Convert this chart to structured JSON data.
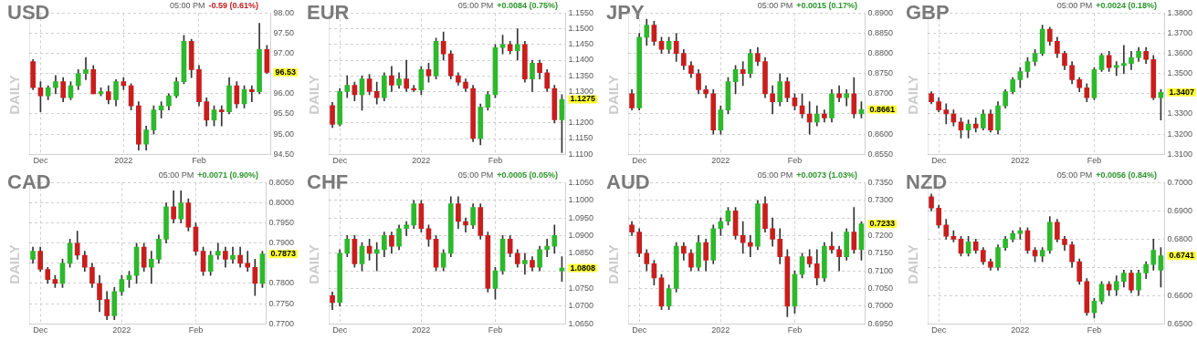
{
  "chart_data": [
    {
      "type": "candlestick",
      "title": "USD",
      "subtitle": "05:00 PM",
      "ylabel": "DAILY",
      "grid": true,
      "annotations": [
        "-0.59 (0.61%)",
        "96.53"
      ],
      "categories": [
        null,
        "Dec",
        null,
        null,
        null,
        null,
        null,
        null,
        null,
        null,
        null,
        null,
        "2022",
        null,
        null,
        null,
        null,
        null,
        null,
        null,
        null,
        null,
        "Feb",
        null,
        null,
        null,
        null,
        null,
        null,
        null,
        null,
        null
      ],
      "ylim": [
        94.5,
        98
      ],
      "yticks": [
        {
          "value": 94.5,
          "label": "94.50"
        },
        {
          "value": 95,
          "label": "95.00"
        },
        {
          "value": 95.5,
          "label": "95.50"
        },
        {
          "value": 96,
          "label": "96.00"
        },
        {
          "value": 96.5,
          "label": null
        },
        {
          "value": 97,
          "label": "97.00"
        },
        {
          "value": 97.5,
          "label": "97.50"
        },
        {
          "value": 98,
          "label": "98.00"
        }
      ],
      "ohlc": [
        [
          96.8,
          96.85,
          96.1,
          96.15
        ],
        [
          96.15,
          96.3,
          95.55,
          95.95
        ],
        [
          95.95,
          96.2,
          95.85,
          96.15
        ],
        [
          96.15,
          96.45,
          96.0,
          96.3
        ],
        [
          96.3,
          96.4,
          95.8,
          95.9
        ],
        [
          95.9,
          96.3,
          95.85,
          96.2
        ],
        [
          96.2,
          96.6,
          96.1,
          96.5
        ],
        [
          96.5,
          96.9,
          96.35,
          96.6
        ],
        [
          96.6,
          96.7,
          96.0,
          96.0
        ],
        [
          96.0,
          96.15,
          95.95,
          96.05
        ],
        [
          96.05,
          96.2,
          95.75,
          95.85
        ],
        [
          95.85,
          96.35,
          95.7,
          96.3
        ],
        [
          96.3,
          96.4,
          96.1,
          96.2
        ],
        [
          96.2,
          96.25,
          95.6,
          95.7
        ],
        [
          95.7,
          95.8,
          94.6,
          94.75
        ],
        [
          94.75,
          95.2,
          94.6,
          95.1
        ],
        [
          95.1,
          95.7,
          95.0,
          95.6
        ],
        [
          95.6,
          95.8,
          95.4,
          95.7
        ],
        [
          95.7,
          96.0,
          95.6,
          95.95
        ],
        [
          95.95,
          96.4,
          95.9,
          96.3
        ],
        [
          96.3,
          97.45,
          96.25,
          97.3
        ],
        [
          97.3,
          97.35,
          96.4,
          96.6
        ],
        [
          96.6,
          96.7,
          95.7,
          95.8
        ],
        [
          95.8,
          95.9,
          95.2,
          95.35
        ],
        [
          95.35,
          95.7,
          95.2,
          95.6
        ],
        [
          95.6,
          95.7,
          95.2,
          95.55
        ],
        [
          95.55,
          96.4,
          95.5,
          96.2
        ],
        [
          96.2,
          96.3,
          95.65,
          95.75
        ],
        [
          95.75,
          96.2,
          95.65,
          96.1
        ],
        [
          96.1,
          96.2,
          95.8,
          96.05
        ],
        [
          96.05,
          97.75,
          96.0,
          97.1
        ],
        [
          97.1,
          97.2,
          96.5,
          96.53
        ]
      ]
    },
    {
      "type": "candlestick",
      "title": "EUR",
      "subtitle": "05:00 PM",
      "ylabel": "DAILY",
      "grid": true,
      "annotations": [
        "+0.0084 (0.75%)",
        "1.1275"
      ],
      "categories": [
        null,
        "Dec",
        null,
        null,
        null,
        null,
        null,
        null,
        null,
        null,
        null,
        null,
        "2022",
        null,
        null,
        null,
        null,
        null,
        null,
        null,
        null,
        null,
        "Feb",
        null,
        null,
        null,
        null,
        null,
        null,
        null,
        null,
        null
      ],
      "ylim": [
        1.11,
        1.155
      ],
      "yticks": [
        {
          "value": 1.11,
          "label": "1.1100"
        },
        {
          "value": 1.115,
          "label": "1.1150"
        },
        {
          "value": 1.12,
          "label": "1.1200"
        },
        {
          "value": 1.125,
          "label": null
        },
        {
          "value": 1.13,
          "label": "1.1300"
        },
        {
          "value": 1.135,
          "label": "1.1350"
        },
        {
          "value": 1.14,
          "label": "1.1400"
        },
        {
          "value": 1.145,
          "label": "1.1450"
        },
        {
          "value": 1.15,
          "label": "1.1500"
        },
        {
          "value": 1.155,
          "label": "1.1550"
        }
      ],
      "ohlc": [
        [
          1.1255,
          1.1265,
          1.1185,
          1.1195
        ],
        [
          1.1195,
          1.131,
          1.119,
          1.13
        ],
        [
          1.13,
          1.135,
          1.128,
          1.132
        ],
        [
          1.132,
          1.133,
          1.127,
          1.129
        ],
        [
          1.129,
          1.135,
          1.124,
          1.134
        ],
        [
          1.134,
          1.1355,
          1.129,
          1.13
        ],
        [
          1.13,
          1.133,
          1.126,
          1.128
        ],
        [
          1.128,
          1.136,
          1.127,
          1.135
        ],
        [
          1.135,
          1.138,
          1.13,
          1.132
        ],
        [
          1.132,
          1.136,
          1.131,
          1.134
        ],
        [
          1.134,
          1.14,
          1.13,
          1.131
        ],
        [
          1.131,
          1.132,
          1.13,
          1.1305
        ],
        [
          1.1305,
          1.138,
          1.129,
          1.137
        ],
        [
          1.137,
          1.139,
          1.133,
          1.135
        ],
        [
          1.135,
          1.147,
          1.134,
          1.146
        ],
        [
          1.146,
          1.149,
          1.14,
          1.142
        ],
        [
          1.142,
          1.143,
          1.134,
          1.135
        ],
        [
          1.135,
          1.136,
          1.132,
          1.133
        ],
        [
          1.133,
          1.134,
          1.13,
          1.131
        ],
        [
          1.131,
          1.132,
          1.114,
          1.115
        ],
        [
          1.115,
          1.126,
          1.113,
          1.125
        ],
        [
          1.125,
          1.13,
          1.124,
          1.129
        ],
        [
          1.129,
          1.145,
          1.128,
          1.144
        ],
        [
          1.144,
          1.148,
          1.142,
          1.145
        ],
        [
          1.145,
          1.146,
          1.142,
          1.143
        ],
        [
          1.143,
          1.15,
          1.14,
          1.145
        ],
        [
          1.145,
          1.146,
          1.133,
          1.134
        ],
        [
          1.134,
          1.14,
          1.13,
          1.139
        ],
        [
          1.139,
          1.14,
          1.134,
          1.136
        ],
        [
          1.136,
          1.137,
          1.13,
          1.131
        ],
        [
          1.131,
          1.132,
          1.12,
          1.121
        ],
        [
          1.121,
          1.129,
          1.1105,
          1.1275
        ]
      ]
    },
    {
      "type": "candlestick",
      "title": "JPY",
      "subtitle": "05:00 PM",
      "ylabel": "DAILY",
      "grid": true,
      "annotations": [
        "+0.0015 (0.17%)",
        "0.8661"
      ],
      "categories": [
        null,
        "Dec",
        null,
        null,
        null,
        null,
        null,
        null,
        null,
        null,
        null,
        null,
        "2022",
        null,
        null,
        null,
        null,
        null,
        null,
        null,
        null,
        null,
        "Feb",
        null,
        null,
        null,
        null,
        null,
        null,
        null,
        null,
        null
      ],
      "ylim": [
        0.855,
        0.89
      ],
      "yticks": [
        {
          "value": 0.855,
          "label": "0.8550"
        },
        {
          "value": 0.86,
          "label": "0.8600"
        },
        {
          "value": 0.865,
          "label": null
        },
        {
          "value": 0.87,
          "label": "0.8700"
        },
        {
          "value": 0.875,
          "label": "0.8750"
        },
        {
          "value": 0.88,
          "label": "0.8800"
        },
        {
          "value": 0.885,
          "label": "0.8850"
        },
        {
          "value": 0.89,
          "label": "0.8900"
        }
      ],
      "ohlc": [
        [
          0.87,
          0.871,
          0.866,
          0.8665
        ],
        [
          0.8665,
          0.885,
          0.866,
          0.884
        ],
        [
          0.884,
          0.8885,
          0.882,
          0.887
        ],
        [
          0.887,
          0.888,
          0.882,
          0.883
        ],
        [
          0.883,
          0.884,
          0.88,
          0.881
        ],
        [
          0.881,
          0.884,
          0.88,
          0.883
        ],
        [
          0.883,
          0.885,
          0.878,
          0.88
        ],
        [
          0.88,
          0.881,
          0.876,
          0.877
        ],
        [
          0.877,
          0.878,
          0.874,
          0.875
        ],
        [
          0.875,
          0.876,
          0.87,
          0.871
        ],
        [
          0.871,
          0.872,
          0.869,
          0.87
        ],
        [
          0.87,
          0.871,
          0.86,
          0.861
        ],
        [
          0.861,
          0.867,
          0.86,
          0.866
        ],
        [
          0.866,
          0.874,
          0.865,
          0.873
        ],
        [
          0.873,
          0.877,
          0.87,
          0.876
        ],
        [
          0.876,
          0.878,
          0.872,
          0.875
        ],
        [
          0.875,
          0.881,
          0.874,
          0.88
        ],
        [
          0.88,
          0.8815,
          0.877,
          0.878
        ],
        [
          0.878,
          0.879,
          0.869,
          0.87
        ],
        [
          0.87,
          0.872,
          0.865,
          0.868
        ],
        [
          0.868,
          0.875,
          0.867,
          0.873
        ],
        [
          0.873,
          0.874,
          0.868,
          0.869
        ],
        [
          0.869,
          0.87,
          0.866,
          0.867
        ],
        [
          0.867,
          0.87,
          0.864,
          0.865
        ],
        [
          0.865,
          0.868,
          0.86,
          0.863
        ],
        [
          0.863,
          0.867,
          0.862,
          0.865
        ],
        [
          0.865,
          0.866,
          0.863,
          0.864
        ],
        [
          0.864,
          0.871,
          0.863,
          0.87
        ],
        [
          0.87,
          0.872,
          0.868,
          0.869
        ],
        [
          0.869,
          0.871,
          0.867,
          0.87
        ],
        [
          0.87,
          0.874,
          0.864,
          0.865
        ],
        [
          0.865,
          0.868,
          0.864,
          0.8661
        ]
      ]
    },
    {
      "type": "candlestick",
      "title": "GBP",
      "subtitle": "05:00 PM",
      "ylabel": "DAILY",
      "grid": true,
      "annotations": [
        "+0.0024 (0.18%)",
        "1.3407"
      ],
      "categories": [
        null,
        "Dec",
        null,
        null,
        null,
        null,
        null,
        null,
        null,
        null,
        null,
        null,
        "2022",
        null,
        null,
        null,
        null,
        null,
        null,
        null,
        null,
        null,
        "Feb",
        null,
        null,
        null,
        null,
        null,
        null,
        null,
        null,
        null
      ],
      "ylim": [
        1.31,
        1.38
      ],
      "yticks": [
        {
          "value": 1.31,
          "label": "1.3100"
        },
        {
          "value": 1.32,
          "label": "1.3200"
        },
        {
          "value": 1.33,
          "label": "1.3300"
        },
        {
          "value": 1.34,
          "label": null
        },
        {
          "value": 1.35,
          "label": "1.3500"
        },
        {
          "value": 1.36,
          "label": "1.3600"
        },
        {
          "value": 1.37,
          "label": "1.3700"
        },
        {
          "value": 1.38,
          "label": "1.3800"
        }
      ],
      "ohlc": [
        [
          1.34,
          1.341,
          1.335,
          1.336
        ],
        [
          1.336,
          1.338,
          1.331,
          1.332
        ],
        [
          1.332,
          1.335,
          1.325,
          1.33
        ],
        [
          1.33,
          1.332,
          1.324,
          1.326
        ],
        [
          1.326,
          1.328,
          1.318,
          1.322
        ],
        [
          1.322,
          1.327,
          1.318,
          1.325
        ],
        [
          1.325,
          1.328,
          1.321,
          1.323
        ],
        [
          1.323,
          1.332,
          1.322,
          1.33
        ],
        [
          1.33,
          1.332,
          1.321,
          1.322
        ],
        [
          1.322,
          1.336,
          1.32,
          1.334
        ],
        [
          1.334,
          1.342,
          1.333,
          1.341
        ],
        [
          1.341,
          1.348,
          1.34,
          1.347
        ],
        [
          1.347,
          1.353,
          1.343,
          1.351
        ],
        [
          1.351,
          1.358,
          1.348,
          1.356
        ],
        [
          1.356,
          1.362,
          1.354,
          1.36
        ],
        [
          1.36,
          1.374,
          1.359,
          1.372
        ],
        [
          1.372,
          1.373,
          1.364,
          1.366
        ],
        [
          1.366,
          1.368,
          1.358,
          1.36
        ],
        [
          1.36,
          1.361,
          1.352,
          1.354
        ],
        [
          1.354,
          1.356,
          1.345,
          1.347
        ],
        [
          1.347,
          1.348,
          1.341,
          1.343
        ],
        [
          1.343,
          1.345,
          1.336,
          1.338
        ],
        [
          1.338,
          1.353,
          1.337,
          1.352
        ],
        [
          1.352,
          1.36,
          1.351,
          1.359
        ],
        [
          1.359,
          1.361,
          1.351,
          1.353
        ],
        [
          1.353,
          1.356,
          1.349,
          1.354
        ],
        [
          1.354,
          1.364,
          1.35,
          1.355
        ],
        [
          1.355,
          1.361,
          1.352,
          1.358
        ],
        [
          1.358,
          1.363,
          1.356,
          1.361
        ],
        [
          1.361,
          1.363,
          1.355,
          1.357
        ],
        [
          1.357,
          1.359,
          1.337,
          1.338
        ],
        [
          1.338,
          1.342,
          1.327,
          1.3407
        ]
      ]
    },
    {
      "type": "candlestick",
      "title": "CAD",
      "subtitle": "05:00 PM",
      "ylabel": "DAILY",
      "grid": true,
      "annotations": [
        "+0.0071 (0.90%)",
        "0.7873"
      ],
      "categories": [
        null,
        "Dec",
        null,
        null,
        null,
        null,
        null,
        null,
        null,
        null,
        null,
        null,
        "2022",
        null,
        null,
        null,
        null,
        null,
        null,
        null,
        null,
        null,
        "Feb",
        null,
        null,
        null,
        null,
        null,
        null,
        null,
        null,
        null
      ],
      "ylim": [
        0.77,
        0.805
      ],
      "yticks": [
        {
          "value": 0.77,
          "label": "0.7700"
        },
        {
          "value": 0.775,
          "label": "0.7750"
        },
        {
          "value": 0.78,
          "label": "0.7800"
        },
        {
          "value": 0.785,
          "label": null
        },
        {
          "value": 0.79,
          "label": "0.7900"
        },
        {
          "value": 0.795,
          "label": "0.7950"
        },
        {
          "value": 0.8,
          "label": "0.8000"
        },
        {
          "value": 0.805,
          "label": "0.8050"
        }
      ],
      "ohlc": [
        [
          0.786,
          0.789,
          0.785,
          0.788
        ],
        [
          0.788,
          0.789,
          0.783,
          0.7835
        ],
        [
          0.7835,
          0.784,
          0.78,
          0.781
        ],
        [
          0.781,
          0.782,
          0.779,
          0.78
        ],
        [
          0.78,
          0.786,
          0.779,
          0.785
        ],
        [
          0.785,
          0.791,
          0.784,
          0.79
        ],
        [
          0.79,
          0.793,
          0.786,
          0.787
        ],
        [
          0.787,
          0.788,
          0.783,
          0.784
        ],
        [
          0.784,
          0.785,
          0.779,
          0.78
        ],
        [
          0.78,
          0.782,
          0.773,
          0.776
        ],
        [
          0.776,
          0.778,
          0.771,
          0.772
        ],
        [
          0.772,
          0.779,
          0.771,
          0.778
        ],
        [
          0.778,
          0.782,
          0.777,
          0.781
        ],
        [
          0.781,
          0.783,
          0.779,
          0.782
        ],
        [
          0.782,
          0.79,
          0.78,
          0.789
        ],
        [
          0.789,
          0.79,
          0.783,
          0.784
        ],
        [
          0.784,
          0.788,
          0.78,
          0.786
        ],
        [
          0.786,
          0.792,
          0.785,
          0.791
        ],
        [
          0.791,
          0.8,
          0.79,
          0.799
        ],
        [
          0.799,
          0.803,
          0.795,
          0.796
        ],
        [
          0.796,
          0.803,
          0.795,
          0.8
        ],
        [
          0.8,
          0.801,
          0.793,
          0.794
        ],
        [
          0.794,
          0.795,
          0.787,
          0.788
        ],
        [
          0.788,
          0.789,
          0.782,
          0.783
        ],
        [
          0.783,
          0.788,
          0.782,
          0.787
        ],
        [
          0.787,
          0.79,
          0.786,
          0.788
        ],
        [
          0.788,
          0.789,
          0.784,
          0.786
        ],
        [
          0.786,
          0.789,
          0.785,
          0.787
        ],
        [
          0.787,
          0.789,
          0.784,
          0.785
        ],
        [
          0.785,
          0.788,
          0.783,
          0.784
        ],
        [
          0.784,
          0.786,
          0.777,
          0.78
        ],
        [
          0.78,
          0.788,
          0.779,
          0.7873
        ]
      ]
    },
    {
      "type": "candlestick",
      "title": "CHF",
      "subtitle": "05:00 PM",
      "ylabel": "DAILY",
      "grid": true,
      "annotations": [
        "+0.0005 (0.05%)",
        "1.0808"
      ],
      "categories": [
        null,
        "Dec",
        null,
        null,
        null,
        null,
        null,
        null,
        null,
        null,
        null,
        null,
        "2022",
        null,
        null,
        null,
        null,
        null,
        null,
        null,
        null,
        null,
        "Feb",
        null,
        null,
        null,
        null,
        null,
        null,
        null,
        null,
        null
      ],
      "ylim": [
        1.065,
        1.105
      ],
      "yticks": [
        {
          "value": 1.065,
          "label": "1.0650"
        },
        {
          "value": 1.07,
          "label": "1.0700"
        },
        {
          "value": 1.075,
          "label": "1.0750"
        },
        {
          "value": 1.08,
          "label": null
        },
        {
          "value": 1.085,
          "label": "1.0850"
        },
        {
          "value": 1.09,
          "label": "1.0900"
        },
        {
          "value": 1.095,
          "label": "1.0950"
        },
        {
          "value": 1.1,
          "label": "1.1000"
        },
        {
          "value": 1.105,
          "label": "1.1050"
        }
      ],
      "ohlc": [
        [
          1.073,
          1.074,
          1.069,
          1.071
        ],
        [
          1.071,
          1.086,
          1.07,
          1.085
        ],
        [
          1.085,
          1.09,
          1.084,
          1.089
        ],
        [
          1.089,
          1.09,
          1.081,
          1.082
        ],
        [
          1.082,
          1.088,
          1.08,
          1.087
        ],
        [
          1.087,
          1.089,
          1.083,
          1.085
        ],
        [
          1.085,
          1.088,
          1.08,
          1.086
        ],
        [
          1.086,
          1.091,
          1.084,
          1.09
        ],
        [
          1.09,
          1.091,
          1.085,
          1.087
        ],
        [
          1.087,
          1.093,
          1.086,
          1.092
        ],
        [
          1.092,
          1.094,
          1.09,
          1.093
        ],
        [
          1.093,
          1.1,
          1.092,
          1.099
        ],
        [
          1.099,
          1.1,
          1.091,
          1.092
        ],
        [
          1.092,
          1.093,
          1.087,
          1.089
        ],
        [
          1.089,
          1.09,
          1.08,
          1.081
        ],
        [
          1.081,
          1.086,
          1.08,
          1.085
        ],
        [
          1.085,
          1.101,
          1.084,
          1.099
        ],
        [
          1.099,
          1.101,
          1.092,
          1.094
        ],
        [
          1.094,
          1.095,
          1.091,
          1.093
        ],
        [
          1.093,
          1.099,
          1.092,
          1.098
        ],
        [
          1.098,
          1.099,
          1.089,
          1.09
        ],
        [
          1.09,
          1.091,
          1.074,
          1.075
        ],
        [
          1.075,
          1.081,
          1.072,
          1.08
        ],
        [
          1.08,
          1.09,
          1.079,
          1.089
        ],
        [
          1.089,
          1.09,
          1.084,
          1.085
        ],
        [
          1.085,
          1.086,
          1.081,
          1.082
        ],
        [
          1.082,
          1.085,
          1.079,
          1.083
        ],
        [
          1.083,
          1.084,
          1.08,
          1.081
        ],
        [
          1.081,
          1.087,
          1.08,
          1.086
        ],
        [
          1.086,
          1.089,
          1.084,
          1.087
        ],
        [
          1.087,
          1.093,
          1.085,
          1.09
        ],
        [
          1.08,
          1.084,
          1.077,
          1.0808
        ]
      ]
    },
    {
      "type": "candlestick",
      "title": "AUD",
      "subtitle": "05:00 PM",
      "ylabel": "DAILY",
      "grid": true,
      "annotations": [
        "+0.0073 (1.03%)",
        "0.7233"
      ],
      "categories": [
        null,
        "Dec",
        null,
        null,
        null,
        null,
        null,
        null,
        null,
        null,
        null,
        null,
        "2022",
        null,
        null,
        null,
        null,
        null,
        null,
        null,
        null,
        null,
        "Feb",
        null,
        null,
        null,
        null,
        null,
        null,
        null,
        null,
        null
      ],
      "ylim": [
        0.695,
        0.735
      ],
      "yticks": [
        {
          "value": 0.695,
          "label": "0.6950"
        },
        {
          "value": 0.7,
          "label": "0.7000"
        },
        {
          "value": 0.705,
          "label": "0.7050"
        },
        {
          "value": 0.71,
          "label": "0.7100"
        },
        {
          "value": 0.715,
          "label": "0.7150"
        },
        {
          "value": 0.72,
          "label": "0.7200"
        },
        {
          "value": 0.725,
          "label": null
        },
        {
          "value": 0.73,
          "label": "0.7300"
        },
        {
          "value": 0.735,
          "label": "0.7350"
        }
      ],
      "ohlc": [
        [
          0.723,
          0.724,
          0.72,
          0.721
        ],
        [
          0.721,
          0.722,
          0.714,
          0.715
        ],
        [
          0.715,
          0.716,
          0.71,
          0.712
        ],
        [
          0.712,
          0.713,
          0.706,
          0.708
        ],
        [
          0.708,
          0.709,
          0.699,
          0.7
        ],
        [
          0.7,
          0.706,
          0.699,
          0.705
        ],
        [
          0.705,
          0.718,
          0.704,
          0.717
        ],
        [
          0.717,
          0.718,
          0.713,
          0.715
        ],
        [
          0.715,
          0.716,
          0.71,
          0.711
        ],
        [
          0.711,
          0.72,
          0.71,
          0.718
        ],
        [
          0.718,
          0.719,
          0.71,
          0.713
        ],
        [
          0.713,
          0.723,
          0.712,
          0.722
        ],
        [
          0.722,
          0.725,
          0.72,
          0.724
        ],
        [
          0.724,
          0.728,
          0.723,
          0.727
        ],
        [
          0.727,
          0.728,
          0.719,
          0.72
        ],
        [
          0.72,
          0.724,
          0.715,
          0.718
        ],
        [
          0.718,
          0.72,
          0.714,
          0.717
        ],
        [
          0.717,
          0.73,
          0.716,
          0.729
        ],
        [
          0.729,
          0.731,
          0.721,
          0.722
        ],
        [
          0.722,
          0.725,
          0.717,
          0.719
        ],
        [
          0.719,
          0.722,
          0.712,
          0.714
        ],
        [
          0.714,
          0.716,
          0.697,
          0.7
        ],
        [
          0.7,
          0.71,
          0.698,
          0.709
        ],
        [
          0.709,
          0.715,
          0.708,
          0.714
        ],
        [
          0.714,
          0.716,
          0.711,
          0.712
        ],
        [
          0.712,
          0.716,
          0.706,
          0.708
        ],
        [
          0.708,
          0.718,
          0.707,
          0.717
        ],
        [
          0.717,
          0.721,
          0.715,
          0.716
        ],
        [
          0.716,
          0.717,
          0.71,
          0.714
        ],
        [
          0.714,
          0.722,
          0.713,
          0.721
        ],
        [
          0.721,
          0.728,
          0.715,
          0.716
        ],
        [
          0.716,
          0.724,
          0.713,
          0.7233
        ]
      ]
    },
    {
      "type": "candlestick",
      "title": "NZD",
      "subtitle": "05:00 PM",
      "ylabel": "DAILY",
      "grid": true,
      "annotations": [
        "+0.0056 (0.84%)",
        "0.6741"
      ],
      "categories": [
        null,
        "Dec",
        null,
        null,
        null,
        null,
        null,
        null,
        null,
        null,
        null,
        null,
        "2022",
        null,
        null,
        null,
        null,
        null,
        null,
        null,
        null,
        null,
        "Feb",
        null,
        null,
        null,
        null,
        null,
        null,
        null,
        null,
        null
      ],
      "ylim": [
        0.65,
        0.7
      ],
      "yticks": [
        {
          "value": 0.65,
          "label": "0.6500"
        },
        {
          "value": 0.66,
          "label": "0.6600"
        },
        {
          "value": 0.67,
          "label": null
        },
        {
          "value": 0.68,
          "label": "0.6800"
        },
        {
          "value": 0.69,
          "label": "0.6900"
        },
        {
          "value": 0.7,
          "label": "0.7000"
        }
      ],
      "ohlc": [
        [
          0.695,
          0.696,
          0.69,
          0.691
        ],
        [
          0.691,
          0.692,
          0.684,
          0.685
        ],
        [
          0.685,
          0.687,
          0.68,
          0.681
        ],
        [
          0.681,
          0.683,
          0.679,
          0.68
        ],
        [
          0.68,
          0.681,
          0.674,
          0.675
        ],
        [
          0.675,
          0.681,
          0.674,
          0.679
        ],
        [
          0.679,
          0.68,
          0.675,
          0.676
        ],
        [
          0.676,
          0.677,
          0.671,
          0.672
        ],
        [
          0.672,
          0.673,
          0.669,
          0.67
        ],
        [
          0.67,
          0.678,
          0.669,
          0.677
        ],
        [
          0.677,
          0.681,
          0.676,
          0.68
        ],
        [
          0.68,
          0.683,
          0.679,
          0.682
        ],
        [
          0.682,
          0.684,
          0.68,
          0.683
        ],
        [
          0.683,
          0.684,
          0.675,
          0.676
        ],
        [
          0.676,
          0.677,
          0.672,
          0.674
        ],
        [
          0.674,
          0.677,
          0.672,
          0.676
        ],
        [
          0.676,
          0.688,
          0.675,
          0.686
        ],
        [
          0.686,
          0.687,
          0.679,
          0.68
        ],
        [
          0.68,
          0.681,
          0.676,
          0.678
        ],
        [
          0.678,
          0.679,
          0.67,
          0.672
        ],
        [
          0.672,
          0.673,
          0.664,
          0.665
        ],
        [
          0.665,
          0.666,
          0.653,
          0.654
        ],
        [
          0.654,
          0.659,
          0.652,
          0.658
        ],
        [
          0.658,
          0.665,
          0.657,
          0.664
        ],
        [
          0.664,
          0.665,
          0.66,
          0.662
        ],
        [
          0.662,
          0.667,
          0.66,
          0.665
        ],
        [
          0.665,
          0.669,
          0.663,
          0.668
        ],
        [
          0.668,
          0.669,
          0.661,
          0.662
        ],
        [
          0.662,
          0.669,
          0.66,
          0.668
        ],
        [
          0.668,
          0.672,
          0.666,
          0.671
        ],
        [
          0.671,
          0.68,
          0.669,
          0.676
        ],
        [
          0.669,
          0.677,
          0.663,
          0.6741
        ]
      ]
    }
  ]
}
